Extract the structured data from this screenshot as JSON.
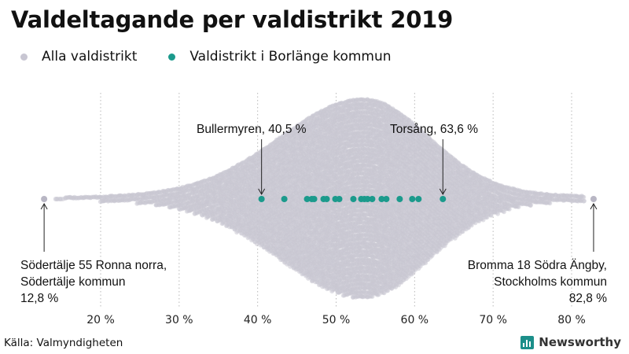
{
  "header": {
    "title": "Valdeltagande per valdistrikt 2019"
  },
  "legend": [
    {
      "label": "Alla valdistrikt",
      "color": "#c8c6d2"
    },
    {
      "label": "Valdistrikt i Borlänge kommun",
      "color": "#1b9a8c"
    }
  ],
  "chart_data": {
    "type": "scatter",
    "subtype": "beeswarm",
    "title": "Valdeltagande per valdistrikt 2019",
    "xlabel": "",
    "ylabel": "",
    "xlim": [
      12,
      85
    ],
    "x_ticks": [
      20,
      30,
      40,
      50,
      60,
      70,
      80
    ],
    "x_tick_labels": [
      "20 %",
      "30 %",
      "40 %",
      "50 %",
      "60 %",
      "70 %",
      "80 %"
    ],
    "grid": "vertical dotted",
    "series": [
      {
        "name": "Alla valdistrikt",
        "description": "All voting districts, dense swarm peaking near 53 %",
        "color": "#c8c6d2",
        "range": [
          12.8,
          82.8
        ],
        "peak": 53.5
      },
      {
        "name": "Valdistrikt i Borlänge kommun",
        "color": "#1b9a8c",
        "values": [
          40.5,
          43.4,
          46.3,
          46.9,
          47.2,
          48.4,
          48.8,
          49.9,
          50.4,
          52.2,
          53.2,
          53.6,
          54.0,
          54.6,
          55.8,
          56.4,
          58.1,
          59.7,
          60.5,
          63.6
        ]
      }
    ],
    "annotations": [
      {
        "label": "Bullermyren, 40,5 %",
        "x": 40.5
      },
      {
        "label": "Torsång, 63,6 %",
        "x": 63.6
      },
      {
        "label": "Södertälje 55 Ronna norra,",
        "label2": "Södertälje kommun",
        "label3": "12,8 %",
        "x": 12.8
      },
      {
        "label": "Bromma 18 Södra Ängby,",
        "label2": "Stockholms kommun",
        "label3": "82,8 %",
        "x": 82.8
      }
    ]
  },
  "footer": {
    "source": "Källa: Valmyndigheten",
    "brand": "Newsworthy"
  }
}
